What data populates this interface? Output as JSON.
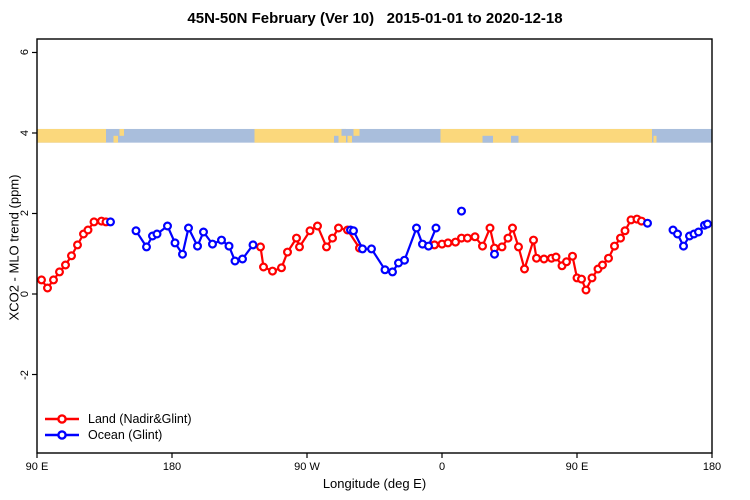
{
  "chart_data": {
    "type": "scatter",
    "title": "45N-50N February (Ver 10)   2015-01-01 to 2020-12-18",
    "xlabel": "Longitude (deg E)",
    "ylabel": "XCO2 - MLO trend (ppm)",
    "xlim": [
      90,
      540
    ],
    "ylim": [
      -3.95,
      6.335
    ],
    "grid": false,
    "legend_position": "bottom-left",
    "x_ticks": [
      {
        "pos": 90,
        "label": "90 E"
      },
      {
        "pos": 180,
        "label": "180"
      },
      {
        "pos": 270,
        "label": "90 W"
      },
      {
        "pos": 360,
        "label": "0"
      },
      {
        "pos": 450,
        "label": "90 E"
      },
      {
        "pos": 540,
        "label": "180"
      }
    ],
    "y_ticks": [
      {
        "pos": 6,
        "label": "6"
      },
      {
        "pos": 4,
        "label": "4"
      },
      {
        "pos": 2,
        "label": "2"
      },
      {
        "pos": 0,
        "label": "0"
      },
      {
        "pos": -2,
        "label": "-2"
      }
    ],
    "map_strip": {
      "description": "world land/ocean band along 45N-50N drawn at y ~3.9",
      "value_top": 4.1,
      "value_bottom": 3.76,
      "ocean_color": "#A9BEDC",
      "land_color": "#FBD87C",
      "land_segments": [
        {
          "from": 90,
          "to": 136
        },
        {
          "from": 141,
          "to": 144,
          "half": "bottom"
        },
        {
          "from": 145,
          "to": 148,
          "half": "top"
        },
        {
          "from": 235,
          "to": 296
        },
        {
          "from": 297,
          "to": 300,
          "half": "bottom"
        },
        {
          "from": 301,
          "to": 305,
          "half": "top"
        },
        {
          "from": 359,
          "to": 500
        },
        {
          "from": 501,
          "to": 503,
          "half": "bottom"
        }
      ],
      "ocean_patches": [
        {
          "from": 288,
          "to": 291,
          "half": "bottom"
        },
        {
          "from": 293,
          "to": 296,
          "half": "top"
        },
        {
          "from": 387,
          "to": 394,
          "half": "bottom"
        },
        {
          "from": 406,
          "to": 411,
          "half": "bottom"
        }
      ]
    },
    "series": [
      {
        "name": "Land (Nadir&Glint)",
        "color": "#FF0000",
        "marker": "open-circle",
        "clusters": [
          [
            [
              93,
              0.35
            ],
            [
              97,
              0.15
            ],
            [
              101,
              0.35
            ],
            [
              105,
              0.55
            ],
            [
              109,
              0.72
            ],
            [
              113,
              0.95
            ],
            [
              117,
              1.22
            ],
            [
              121,
              1.49
            ],
            [
              124,
              1.59
            ],
            [
              128,
              1.79
            ],
            [
              133,
              1.81
            ],
            [
              136,
              1.79
            ]
          ],
          [
            [
              239,
              1.17
            ],
            [
              241,
              0.67
            ],
            [
              247,
              0.57
            ],
            [
              253,
              0.65
            ],
            [
              257,
              1.04
            ],
            [
              263,
              1.39
            ],
            [
              265,
              1.17
            ],
            [
              272,
              1.57
            ],
            [
              277,
              1.69
            ],
            [
              283,
              1.17
            ],
            [
              287,
              1.39
            ],
            [
              291,
              1.64
            ],
            [
              297,
              1.59
            ],
            [
              305,
              1.14
            ]
          ],
          [
            [
              355,
              1.22
            ],
            [
              360,
              1.24
            ],
            [
              364,
              1.27
            ],
            [
              369,
              1.29
            ],
            [
              373,
              1.39
            ],
            [
              377,
              1.39
            ],
            [
              382,
              1.42
            ],
            [
              387,
              1.19
            ],
            [
              392,
              1.64
            ],
            [
              395,
              1.14
            ],
            [
              400,
              1.17
            ],
            [
              404,
              1.39
            ],
            [
              407,
              1.64
            ],
            [
              411,
              1.17
            ],
            [
              415,
              0.62
            ],
            [
              421,
              1.34
            ],
            [
              423,
              0.89
            ],
            [
              428,
              0.87
            ],
            [
              433,
              0.89
            ],
            [
              436,
              0.92
            ],
            [
              440,
              0.7
            ],
            [
              443,
              0.8
            ],
            [
              447,
              0.94
            ],
            [
              450,
              0.4
            ],
            [
              453,
              0.37
            ],
            [
              456,
              0.1
            ],
            [
              460,
              0.4
            ],
            [
              464,
              0.62
            ],
            [
              467,
              0.72
            ],
            [
              471,
              0.89
            ],
            [
              475,
              1.19
            ],
            [
              479,
              1.39
            ],
            [
              482,
              1.57
            ],
            [
              486,
              1.84
            ],
            [
              490,
              1.86
            ],
            [
              493,
              1.81
            ]
          ]
        ]
      },
      {
        "name": "Ocean (Glint)",
        "color": "#0000FF",
        "marker": "open-circle",
        "clusters": [
          [
            [
              139,
              1.79
            ]
          ],
          [
            [
              156,
              1.57
            ],
            [
              163,
              1.17
            ],
            [
              167,
              1.44
            ],
            [
              170,
              1.49
            ],
            [
              177,
              1.69
            ],
            [
              182,
              1.27
            ],
            [
              187,
              0.99
            ],
            [
              191,
              1.64
            ],
            [
              197,
              1.19
            ],
            [
              201,
              1.54
            ],
            [
              207,
              1.24
            ],
            [
              213,
              1.34
            ],
            [
              218,
              1.19
            ],
            [
              222,
              0.82
            ],
            [
              227,
              0.87
            ],
            [
              234,
              1.22
            ]
          ],
          [
            [
              299,
              1.59
            ],
            [
              301,
              1.57
            ],
            [
              307,
              1.12
            ],
            [
              313,
              1.12
            ],
            [
              322,
              0.6
            ],
            [
              327,
              0.55
            ],
            [
              331,
              0.77
            ],
            [
              335,
              0.84
            ],
            [
              343,
              1.64
            ],
            [
              347,
              1.24
            ],
            [
              351,
              1.19
            ],
            [
              356,
              1.64
            ]
          ],
          [
            [
              373,
              2.06
            ]
          ],
          [
            [
              395,
              0.99
            ]
          ],
          [
            [
              497,
              1.76
            ]
          ],
          [
            [
              514,
              1.59
            ],
            [
              517,
              1.49
            ],
            [
              521,
              1.19
            ],
            [
              525,
              1.44
            ],
            [
              528,
              1.49
            ],
            [
              531,
              1.54
            ],
            [
              535,
              1.71
            ],
            [
              537,
              1.74
            ]
          ]
        ]
      }
    ]
  },
  "legend": {
    "items": [
      {
        "label": "Land (Nadir&Glint)",
        "color": "#FF0000"
      },
      {
        "label": "Ocean (Glint)",
        "color": "#0000FF"
      }
    ]
  }
}
